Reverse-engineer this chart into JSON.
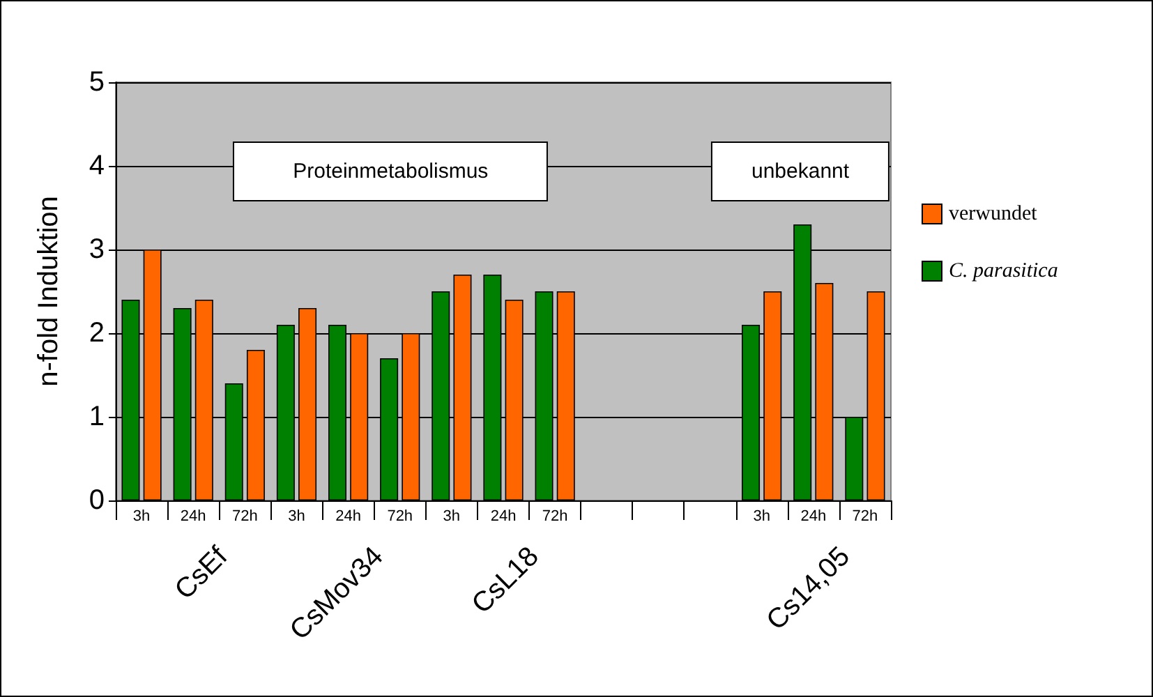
{
  "chart_data": {
    "type": "bar",
    "ylabel": "n-fold Induktion",
    "categories": [
      "3h",
      "24h",
      "72h",
      "3h",
      "24h",
      "72h",
      "3h",
      "24h",
      "72h",
      null,
      null,
      null,
      "3h",
      "24h",
      "72h"
    ],
    "series": [
      {
        "name": "C. parasitica",
        "color": "#008000",
        "values": [
          2.4,
          2.3,
          1.4,
          2.1,
          2.1,
          1.7,
          2.5,
          2.7,
          2.5,
          null,
          null,
          null,
          2.1,
          3.3,
          1.0
        ]
      },
      {
        "name": "verwundet",
        "color": "#ff6600",
        "values": [
          3.0,
          2.4,
          1.8,
          2.3,
          2.0,
          2.0,
          2.7,
          2.4,
          2.5,
          null,
          null,
          null,
          2.5,
          2.6,
          2.5
        ]
      }
    ],
    "ylim": [
      0,
      5
    ],
    "yticks": [
      0,
      1,
      2,
      3,
      4,
      5
    ],
    "grid": "y",
    "legend": "right",
    "annotations": [
      "Proteinmetabolismus",
      "unbekannt",
      "CsEf",
      "CsMov34",
      "CsL18",
      "Cs14,05"
    ]
  }
}
